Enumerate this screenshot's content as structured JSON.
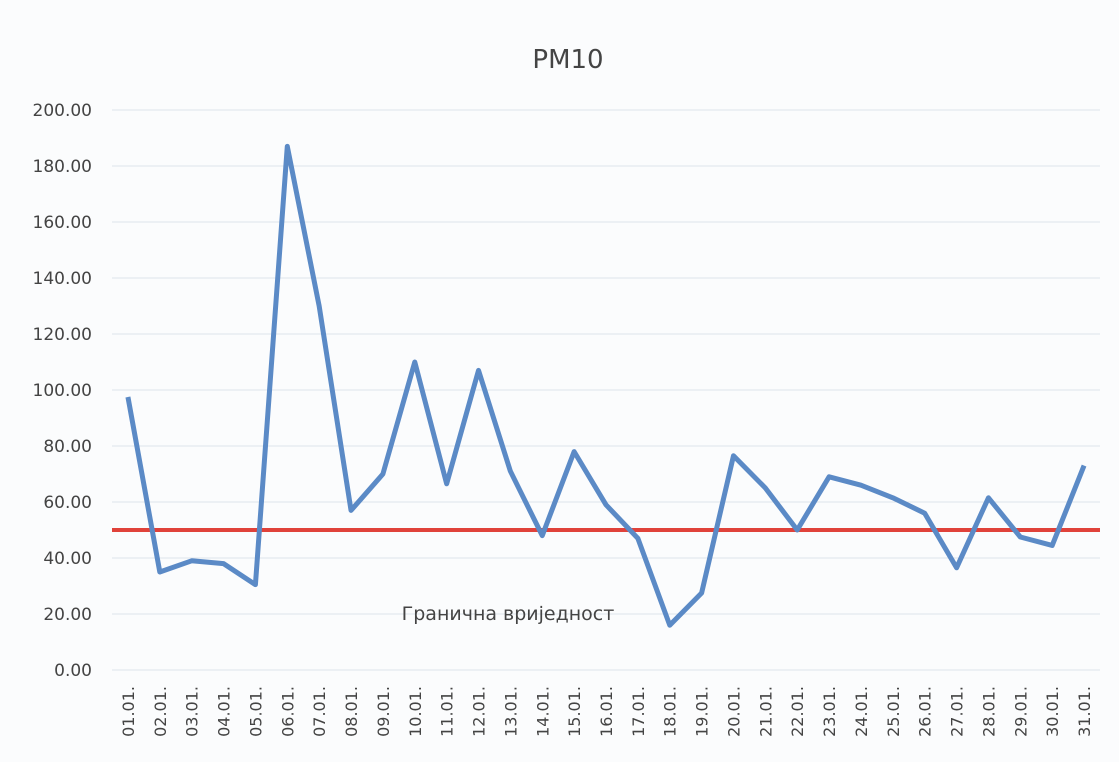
{
  "chart_data": {
    "type": "line",
    "title": "PM10",
    "categories": [
      "01.01.",
      "02.01.",
      "03.01.",
      "04.01.",
      "05.01.",
      "06.01.",
      "07.01.",
      "08.01.",
      "09.01.",
      "10.01.",
      "11.01.",
      "12.01.",
      "13.01.",
      "14.01.",
      "15.01.",
      "16.01.",
      "17.01.",
      "18.01.",
      "19.01.",
      "20.01.",
      "21.01.",
      "22.01.",
      "23.01.",
      "24.01.",
      "25.01.",
      "26.01.",
      "27.01.",
      "28.01.",
      "29.01.",
      "30.01.",
      "31.01."
    ],
    "series": [
      {
        "color": "#5b8ac6",
        "values": [
          97.5,
          35,
          39,
          38,
          30.5,
          187,
          130,
          57,
          70,
          110,
          66.5,
          107,
          71,
          48,
          78,
          59,
          47,
          16,
          27.5,
          76.5,
          65,
          50,
          69,
          66,
          61.5,
          56,
          36.5,
          61.5,
          47.5,
          44.5,
          73
        ]
      }
    ],
    "reference_line": {
      "value": 50,
      "label": "Гранична вриједност",
      "color": "#e0423a"
    },
    "ylim": [
      0,
      200
    ],
    "yticks": [
      {
        "value": 0,
        "label": "0.00"
      },
      {
        "value": 20,
        "label": "20.00"
      },
      {
        "value": 40,
        "label": "40.00"
      },
      {
        "value": 60,
        "label": "60.00"
      },
      {
        "value": 80,
        "label": "80.00"
      },
      {
        "value": 100,
        "label": "100.00"
      },
      {
        "value": 120,
        "label": "120.00"
      },
      {
        "value": 140,
        "label": "140.00"
      },
      {
        "value": 160,
        "label": "160.00"
      },
      {
        "value": 180,
        "label": "180.00"
      },
      {
        "value": 200,
        "label": "200.00"
      }
    ],
    "grid": true
  }
}
